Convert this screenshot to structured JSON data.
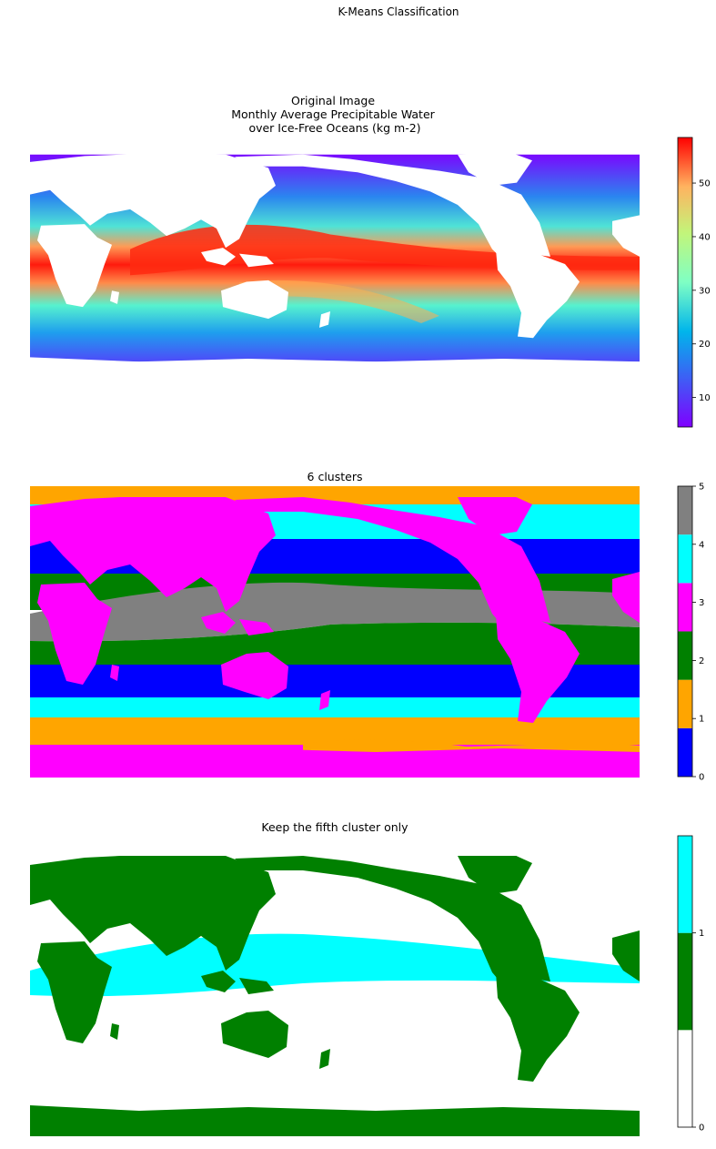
{
  "figure": {
    "suptitle": "K-Means Classification"
  },
  "chart_data": [
    {
      "type": "heatmap",
      "title_lines": [
        "Original Image",
        "Monthly Average Precipitable Water",
        "over Ice-Free Oceans (kg m-2)"
      ],
      "colormap": "rainbow",
      "colorbar": {
        "ticks": [
          10,
          20,
          30,
          40,
          50
        ],
        "range": [
          4.5,
          58.5
        ]
      },
      "missing_color": "#ffffff"
    },
    {
      "type": "heatmap",
      "title": "6 clusters",
      "classes": [
        0,
        1,
        2,
        3,
        4,
        5
      ],
      "class_colors": [
        "#0000ff",
        "#ffa500",
        "#008000",
        "#ff00ff",
        "#00ffff",
        "#808080"
      ],
      "colorbar": {
        "ticks": [
          0,
          1,
          2,
          3,
          4,
          5
        ]
      }
    },
    {
      "type": "heatmap",
      "title": "Keep the fifth cluster only",
      "class_colors": [
        "#ffffff",
        "#008000",
        "#00ffff"
      ],
      "colorbar": {
        "ticks": [
          0,
          1
        ]
      }
    }
  ]
}
